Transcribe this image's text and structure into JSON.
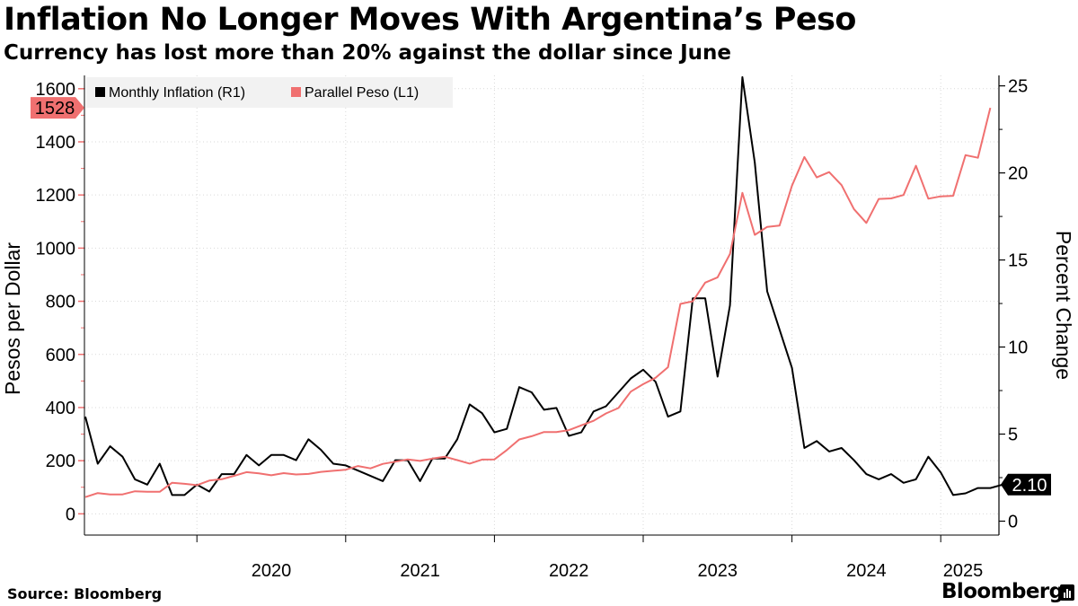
{
  "header": {
    "title": "Inflation No Longer Moves With Argentina’s Peso",
    "subtitle": "Currency has lost more than 20% against the dollar since June"
  },
  "footer": {
    "source": "Source: Bloomberg",
    "brand": "Bloomberg"
  },
  "colors": {
    "inflation": "#000000",
    "peso": "#f07070",
    "grid": "#d9d9d9"
  },
  "chart_data": {
    "type": "line",
    "legend_position": "top-left",
    "grid": true,
    "ylabel_left": "Pesos per Dollar",
    "ylabel_right": "Percent Change",
    "ylim_left": [
      -80,
      1650
    ],
    "ylim_right": [
      -0.8,
      25.6
    ],
    "yticks_left": [
      0,
      200,
      400,
      600,
      800,
      1000,
      1200,
      1400,
      1600
    ],
    "yticks_right": [
      0,
      5,
      10,
      15,
      20,
      25
    ],
    "xticks": [
      "2020",
      "2021",
      "2022",
      "2023",
      "2024",
      "2025"
    ],
    "start_month": "2019-04",
    "series": [
      {
        "name": "Monthly Inflation (R1)",
        "axis": "right",
        "last_label": "2.10",
        "values": [
          6.0,
          3.3,
          4.3,
          3.7,
          2.4,
          2.1,
          3.3,
          1.5,
          1.5,
          2.1,
          1.7,
          2.7,
          2.7,
          3.8,
          3.2,
          3.8,
          3.8,
          3.5,
          4.7,
          4.1,
          3.3,
          3.2,
          2.9,
          2.6,
          2.3,
          3.5,
          3.5,
          2.3,
          3.6,
          3.6,
          4.7,
          6.7,
          6.2,
          5.1,
          5.3,
          7.7,
          7.4,
          6.4,
          6.5,
          4.9,
          5.1,
          6.3,
          6.6,
          7.4,
          8.2,
          8.7,
          8.0,
          6.0,
          6.3,
          12.8,
          12.8,
          8.3,
          12.4,
          25.5,
          20.6,
          13.2,
          11.0,
          8.8,
          4.2,
          4.6,
          4.0,
          4.2,
          3.5,
          2.7,
          2.4,
          2.7,
          2.2,
          2.4,
          3.7,
          2.8,
          1.5,
          1.6,
          1.9,
          1.9,
          2.1
        ]
      },
      {
        "name": "Parallel Peso (L1)",
        "axis": "left",
        "last_label": "1528",
        "values": [
          63,
          78,
          73,
          73,
          85,
          83,
          83,
          117,
          113,
          108,
          125,
          130,
          143,
          157,
          152,
          145,
          153,
          148,
          150,
          158,
          162,
          166,
          180,
          171,
          188,
          196,
          205,
          199,
          208,
          215,
          202,
          189,
          204,
          205,
          240,
          280,
          292,
          308,
          308,
          315,
          333,
          350,
          378,
          398,
          460,
          488,
          512,
          552,
          790,
          800,
          870,
          890,
          978,
          1208,
          1050,
          1080,
          1085,
          1235,
          1343,
          1266,
          1286,
          1237,
          1147,
          1095,
          1185,
          1187,
          1200,
          1310,
          1186,
          1195,
          1197,
          1350,
          1340,
          1528
        ]
      }
    ]
  }
}
